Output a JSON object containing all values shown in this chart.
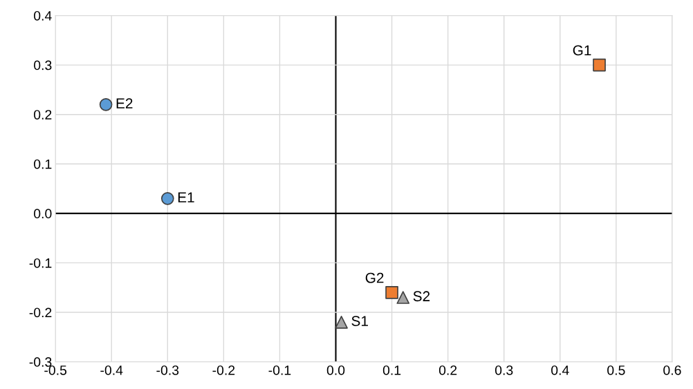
{
  "chart_data": {
    "type": "scatter",
    "xlim": [
      -0.5,
      0.6
    ],
    "ylim": [
      -0.3,
      0.4
    ],
    "xticks": [
      {
        "value": -0.5,
        "label": "-0.5"
      },
      {
        "value": -0.4,
        "label": "-0.4"
      },
      {
        "value": -0.3,
        "label": "-0.3"
      },
      {
        "value": -0.2,
        "label": "-0.2"
      },
      {
        "value": -0.1,
        "label": "-0.1"
      },
      {
        "value": 0,
        "label": "0.0"
      },
      {
        "value": 0.1,
        "label": "0.1"
      },
      {
        "value": 0.2,
        "label": "0.2"
      },
      {
        "value": 0.3,
        "label": "0.3"
      },
      {
        "value": 0.4,
        "label": "0.4"
      },
      {
        "value": 0.5,
        "label": "0.5"
      },
      {
        "value": 0.6,
        "label": "0.6"
      }
    ],
    "yticks": [
      {
        "value": -0.3,
        "label": "-0.3"
      },
      {
        "value": -0.2,
        "label": "-0.2"
      },
      {
        "value": -0.1,
        "label": "-0.1"
      },
      {
        "value": 0,
        "label": "0.0"
      },
      {
        "value": 0.1,
        "label": "0.1"
      },
      {
        "value": 0.2,
        "label": "0.2"
      },
      {
        "value": 0.3,
        "label": "0.3"
      },
      {
        "value": 0.4,
        "label": "0.4"
      }
    ],
    "grid": true,
    "legend": false,
    "series": [
      {
        "color": "#5b9bd5",
        "marker": "circle",
        "x": [
          -0.3,
          -0.41
        ],
        "values": [
          0.03,
          0.22
        ]
      },
      {
        "color": "#ed7d31",
        "marker": "square",
        "x": [
          0.47,
          0.1
        ],
        "values": [
          0.3,
          -0.16
        ]
      },
      {
        "color": "#a5a5a5",
        "marker": "triangle",
        "x": [
          0.01,
          0.12
        ],
        "values": [
          -0.22,
          -0.17
        ]
      }
    ],
    "annotations": [
      {
        "text": "E1",
        "x": -0.3,
        "y": 0.03
      },
      {
        "text": "E2",
        "x": -0.41,
        "y": 0.22
      },
      {
        "text": "G1",
        "x": 0.47,
        "y": 0.3
      },
      {
        "text": "G2",
        "x": 0.1,
        "y": -0.16
      },
      {
        "text": "S1",
        "x": 0.01,
        "y": -0.22
      },
      {
        "text": "S2",
        "x": 0.12,
        "y": -0.17
      }
    ]
  }
}
